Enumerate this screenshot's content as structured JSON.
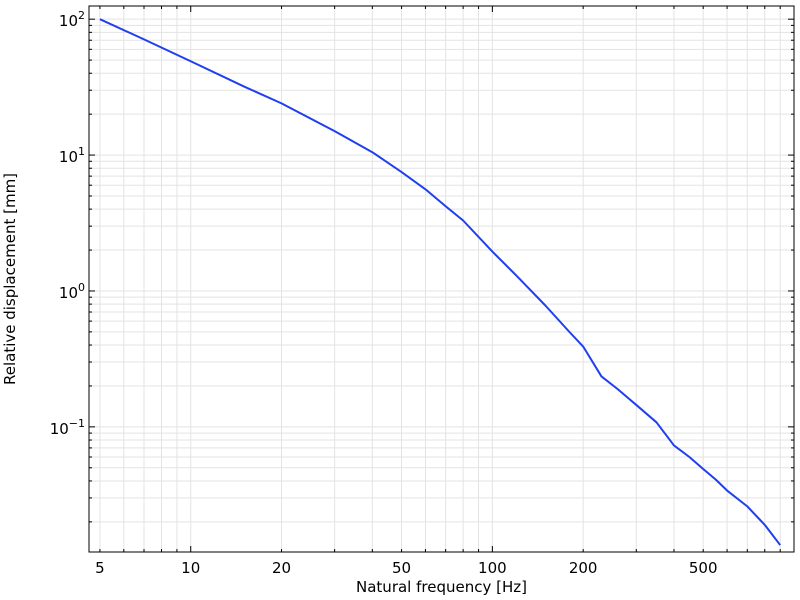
{
  "chart_data": {
    "type": "line",
    "xlabel": "Natural frequency [Hz]",
    "ylabel": "Relative displacement [mm]",
    "xscale": "log",
    "yscale": "log",
    "xlim": [
      4.6,
      1000
    ],
    "ylim": [
      0.012,
      125
    ],
    "grid": true,
    "legend": "none",
    "x_ticks": [
      {
        "value": 5,
        "label": "5"
      },
      {
        "value": 10,
        "label": "10"
      },
      {
        "value": 20,
        "label": "20"
      },
      {
        "value": 50,
        "label": "50"
      },
      {
        "value": 100,
        "label": "100"
      },
      {
        "value": 200,
        "label": "200"
      },
      {
        "value": 500,
        "label": "500"
      }
    ],
    "y_ticks": [
      {
        "value": 0.1,
        "base": "10",
        "exp": "−1"
      },
      {
        "value": 1,
        "base": "10",
        "exp": "0"
      },
      {
        "value": 10,
        "base": "10",
        "exp": "1"
      },
      {
        "value": 100,
        "base": "10",
        "exp": "2"
      }
    ],
    "series": [
      {
        "color": "#1f3ff0",
        "x": [
          5,
          7,
          10,
          15,
          20,
          30,
          40,
          50,
          60,
          70,
          80,
          100,
          120,
          150,
          180,
          200,
          230,
          260,
          300,
          350,
          400,
          450,
          500,
          550,
          600,
          700,
          800,
          900
        ],
        "y": [
          100,
          71,
          49,
          32,
          24,
          15,
          10.5,
          7.5,
          5.6,
          4.2,
          3.3,
          1.95,
          1.3,
          0.78,
          0.5,
          0.39,
          0.235,
          0.19,
          0.145,
          0.108,
          0.073,
          0.06,
          0.049,
          0.041,
          0.034,
          0.026,
          0.019,
          0.0135
        ]
      }
    ]
  }
}
